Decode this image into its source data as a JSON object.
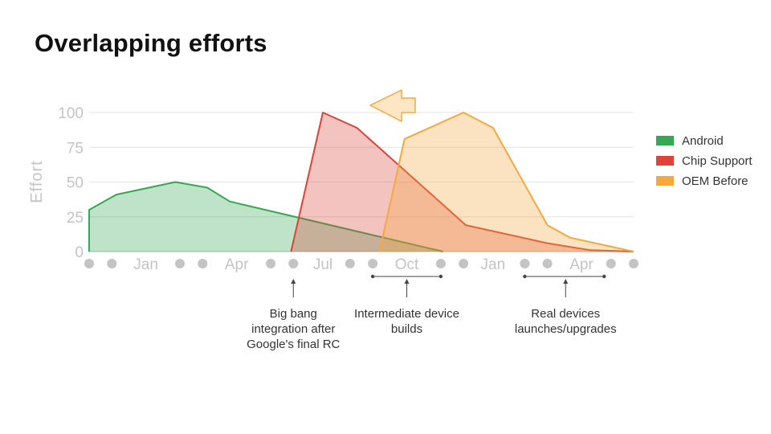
{
  "slide": {
    "title": "Overlapping efforts"
  },
  "chart_data": {
    "type": "area",
    "title": "",
    "ylabel": "Effort",
    "xlabel": "",
    "ylim": [
      0,
      100
    ],
    "yticks": [
      0,
      25,
      50,
      75,
      100
    ],
    "xlim": [
      0,
      24
    ],
    "x_ticks": [
      {
        "x": 0,
        "label": ""
      },
      {
        "x": 1,
        "label": ""
      },
      {
        "x": 2.5,
        "label": "Jan"
      },
      {
        "x": 4,
        "label": ""
      },
      {
        "x": 5,
        "label": ""
      },
      {
        "x": 6.5,
        "label": "Apr"
      },
      {
        "x": 8,
        "label": ""
      },
      {
        "x": 9,
        "label": ""
      },
      {
        "x": 10.3,
        "label": "Jul"
      },
      {
        "x": 11.5,
        "label": ""
      },
      {
        "x": 12.5,
        "label": ""
      },
      {
        "x": 14,
        "label": "Oct"
      },
      {
        "x": 15.5,
        "label": ""
      },
      {
        "x": 16.5,
        "label": ""
      },
      {
        "x": 17.8,
        "label": "Jan"
      },
      {
        "x": 19.2,
        "label": ""
      },
      {
        "x": 20.2,
        "label": ""
      },
      {
        "x": 21.7,
        "label": "Apr"
      },
      {
        "x": 23,
        "label": ""
      },
      {
        "x": 24,
        "label": ""
      }
    ],
    "grid": true,
    "legend_position": "right",
    "colors": {
      "Android": "#34a853",
      "Chip Support": "#db4437",
      "OEM Before": "#f4a93e"
    },
    "series": [
      {
        "name": "Android",
        "x": [
          0,
          0,
          1.2,
          3.8,
          5.2,
          6.2,
          15.6
        ],
        "y": [
          0,
          30,
          41,
          50,
          46,
          36,
          0
        ]
      },
      {
        "name": "Chip Support",
        "x": [
          8.9,
          10.3,
          11.8,
          16.6,
          20.2,
          22.1,
          24
        ],
        "y": [
          0,
          100,
          89,
          19,
          6,
          1,
          0
        ]
      },
      {
        "name": "OEM Before",
        "x": [
          12.8,
          13.9,
          16.5,
          17.8,
          20.2,
          21.2,
          24
        ],
        "y": [
          0,
          81,
          100,
          89,
          19,
          10,
          0
        ]
      }
    ],
    "annotations": [
      {
        "x": 9.0,
        "lines": [
          "Big bang",
          "integration after",
          "Google's final RC"
        ],
        "range": null
      },
      {
        "x": 14.0,
        "lines": [
          "Intermediate device",
          "builds"
        ],
        "range": [
          12.5,
          15.5
        ]
      },
      {
        "x": 21.0,
        "lines": [
          "Real devices",
          "launches/upgrades"
        ],
        "range": [
          19.2,
          22.7
        ]
      }
    ],
    "arrow_icon": "left-arrow-icon"
  }
}
